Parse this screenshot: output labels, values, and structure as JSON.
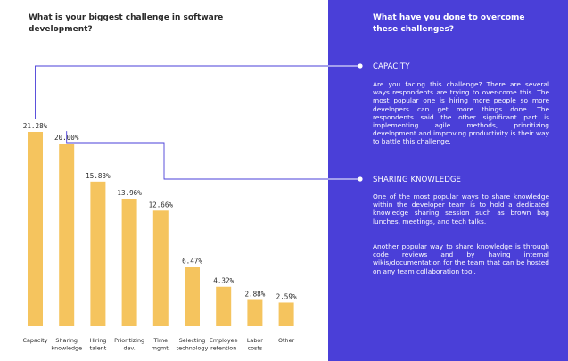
{
  "left_title": "What is your biggest challenge in software development?",
  "right_title": "What have you done to overcome these challenges?",
  "sections": [
    {
      "heading": "CAPACITY",
      "paragraphs": [
        "Are you facing this challenge? There are several ways respondents are trying to over-come this. The most popular one is hiring more people so more developers can get more things done. The respondents said the other significant part is implementing agile methods, prioritizing development and improving productivity is their way to battle this challenge."
      ]
    },
    {
      "heading": "SHARING KNOWLEDGE",
      "paragraphs": [
        "One of the most popular ways to share knowledge within the developer team is to hold a dedicated knowledge sharing session such as brown bag lunches, meetings, and tech talks.",
        "Another popular way to share knowledge is through code reviews and by having internal wikis/documentation for the team that can be hosted on any team collaboration tool."
      ]
    }
  ],
  "colors": {
    "bar": "#f5c45e",
    "panel": "#4a3fd8",
    "connector": "#4a3fd8",
    "text": "#2a2a2a"
  },
  "chart_data": {
    "type": "bar",
    "title": "What is your biggest challenge in software development?",
    "categories": [
      [
        "Capacity"
      ],
      [
        "Sharing",
        "knowledge"
      ],
      [
        "Hiring",
        "talent"
      ],
      [
        "Prioritizing",
        "dev."
      ],
      [
        "Time",
        "mgmt."
      ],
      [
        "Selecting",
        "technology"
      ],
      [
        "Employee",
        "retention"
      ],
      [
        "Labor",
        "costs"
      ],
      [
        "Other"
      ]
    ],
    "values": [
      21.28,
      20.0,
      15.83,
      13.96,
      12.66,
      6.47,
      4.32,
      2.88,
      2.59
    ],
    "value_labels": [
      "21.28%",
      "20.00%",
      "15.83%",
      "13.96%",
      "12.66%",
      "6.47%",
      "4.32%",
      "2.88%",
      "2.59%"
    ],
    "ylim": [
      0,
      21.28
    ],
    "grid": false,
    "legend": "none"
  }
}
